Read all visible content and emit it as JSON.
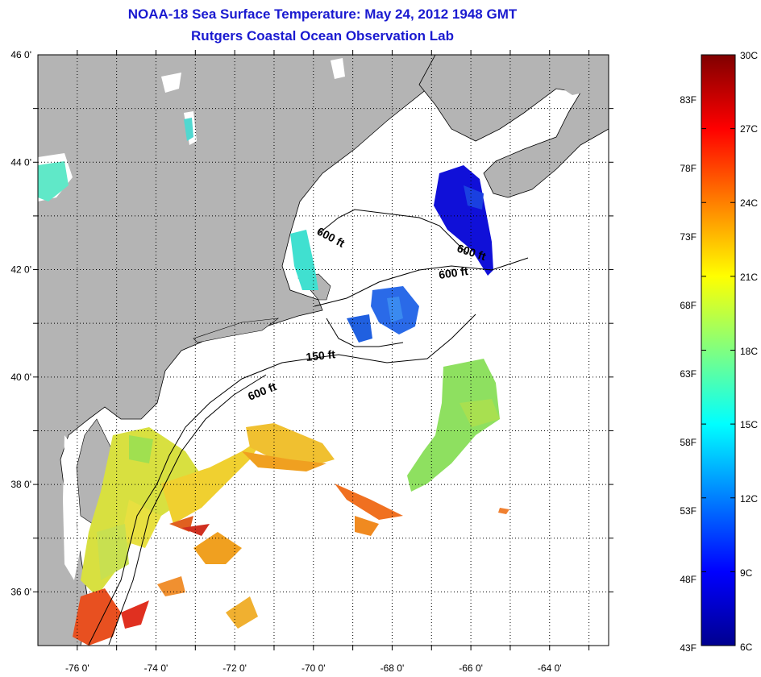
{
  "title_line1": "NOAA-18 Sea Surface Temperature:  May 24, 2012 1948 GMT",
  "title_line2": "Rutgers Coastal Ocean Observation Lab",
  "map": {
    "lon_range": [
      -77,
      -62.5
    ],
    "lat_range": [
      35,
      46
    ],
    "lon_ticks": [
      "-76 0'",
      "-74 0'",
      "-72 0'",
      "-70 0'",
      "-68 0'",
      "-66 0'",
      "-64 0'"
    ],
    "lat_ticks": [
      "46 0'",
      "44 0'",
      "42 0'",
      "40 0'",
      "38 0'",
      "36 0'"
    ],
    "grid": "dotted",
    "land_color": "#b4b4b4",
    "contour_labels": [
      "600 ft",
      "600 ft",
      "600 ft",
      "150 ft",
      "600 ft"
    ]
  },
  "colorbar": {
    "range_c": [
      6,
      30
    ],
    "f_labels": [
      "83F",
      "78F",
      "73F",
      "68F",
      "63F",
      "58F",
      "53F",
      "48F",
      "43F"
    ],
    "c_labels": [
      "30C",
      "27C",
      "24C",
      "21C",
      "18C",
      "15C",
      "12C",
      "9C",
      "6C"
    ]
  }
}
